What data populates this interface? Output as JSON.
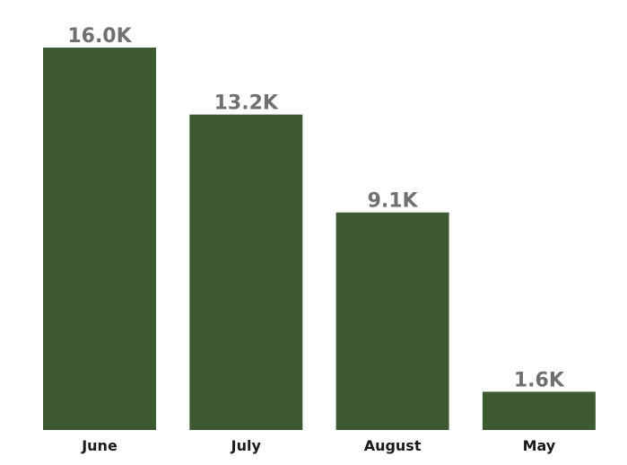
{
  "chart_data": {
    "type": "bar",
    "categories": [
      "June",
      "July",
      "August",
      "May"
    ],
    "values": [
      16000,
      13200,
      9100,
      1600
    ],
    "data_labels": [
      "16.0K",
      "13.2K",
      "9.1K",
      "1.6K"
    ],
    "title": "",
    "xlabel": "",
    "ylabel": "",
    "ylim": [
      0,
      16000
    ],
    "grid": false,
    "legend": "none",
    "bar_color": "#3d5a33"
  }
}
